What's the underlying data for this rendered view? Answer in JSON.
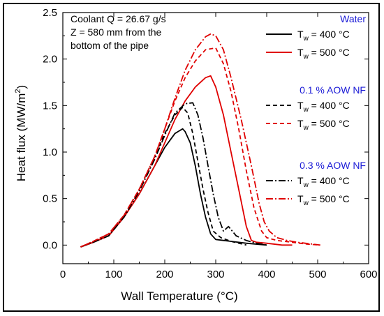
{
  "chart_data": {
    "type": "line",
    "xlabel": "Wall Temperature (°C)",
    "ylabel_main": "Heat flux (MW/m",
    "ylabel_sup": "2",
    "ylabel_end": ")",
    "xlim": [
      0,
      600
    ],
    "ylim": [
      -0.2,
      2.5
    ],
    "x_ticks": [
      0,
      100,
      200,
      300,
      400,
      500,
      600
    ],
    "y_ticks": [
      0.0,
      0.5,
      1.0,
      1.5,
      2.0,
      2.5
    ],
    "y_tick_labels": [
      "0.0",
      "0.5",
      "1.0",
      "1.5",
      "2.0",
      "2.5"
    ],
    "grid": false,
    "legend_position": "right",
    "annotation": [
      "Coolant Q = 26.67 g/s",
      "Z = 580 mm from the",
      "bottom of the pipe"
    ],
    "groups": [
      {
        "title": "Water"
      },
      {
        "title": "0.1 % AOW NF"
      },
      {
        "title": "0.3 % AOW NF"
      }
    ],
    "series": [
      {
        "group": 0,
        "label_main": "T",
        "label_sub": "w",
        "label_rest": " = 400 °C",
        "color": "#000000",
        "dash": "solid",
        "x": [
          35,
          60,
          90,
          120,
          150,
          180,
          200,
          220,
          235,
          240,
          250,
          260,
          270,
          280,
          290,
          300,
          330,
          360,
          400
        ],
        "y": [
          -0.02,
          0.03,
          0.1,
          0.3,
          0.55,
          0.85,
          1.05,
          1.2,
          1.25,
          1.22,
          1.1,
          0.85,
          0.55,
          0.3,
          0.12,
          0.06,
          0.04,
          0.02,
          0.0
        ]
      },
      {
        "group": 0,
        "label_main": "T",
        "label_sub": "w",
        "label_rest": " = 500 °C",
        "color": "#e00000",
        "dash": "solid",
        "x": [
          35,
          60,
          90,
          120,
          150,
          180,
          200,
          220,
          240,
          260,
          280,
          290,
          300,
          315,
          330,
          345,
          360,
          370,
          380,
          400,
          430,
          450
        ],
        "y": [
          -0.02,
          0.03,
          0.1,
          0.3,
          0.55,
          0.85,
          1.1,
          1.35,
          1.55,
          1.7,
          1.8,
          1.82,
          1.7,
          1.4,
          1.0,
          0.6,
          0.2,
          0.05,
          0.03,
          0.02,
          0.0,
          0.0
        ]
      },
      {
        "group": 1,
        "label_main": "T",
        "label_sub": "w",
        "label_rest": " = 400 °C",
        "color": "#000000",
        "dash": "6,4",
        "x": [
          35,
          60,
          90,
          120,
          150,
          180,
          200,
          220,
          235,
          245,
          255,
          265,
          275,
          285,
          295,
          310,
          330,
          360
        ],
        "y": [
          -0.02,
          0.04,
          0.12,
          0.32,
          0.6,
          0.95,
          1.2,
          1.4,
          1.48,
          1.42,
          1.2,
          0.9,
          0.6,
          0.35,
          0.15,
          0.08,
          0.04,
          0.0
        ]
      },
      {
        "group": 1,
        "label_main": "T",
        "label_sub": "w",
        "label_rest": " = 500 °C",
        "color": "#e00000",
        "dash": "6,4",
        "x": [
          35,
          60,
          90,
          120,
          150,
          180,
          200,
          220,
          240,
          260,
          280,
          300,
          315,
          330,
          345,
          360,
          375,
          390,
          400,
          420,
          450,
          480,
          505
        ],
        "y": [
          -0.02,
          0.04,
          0.12,
          0.32,
          0.6,
          0.95,
          1.25,
          1.55,
          1.8,
          1.98,
          2.1,
          2.12,
          1.95,
          1.65,
          1.25,
          0.8,
          0.4,
          0.15,
          0.08,
          0.05,
          0.03,
          0.01,
          0.0
        ]
      },
      {
        "group": 2,
        "label_main": "T",
        "label_sub": "w",
        "label_rest": " = 400 °C",
        "color": "#000000",
        "dash": "10,3,2,3",
        "x": [
          35,
          60,
          90,
          120,
          150,
          180,
          200,
          220,
          240,
          255,
          265,
          275,
          285,
          295,
          305,
          315,
          325,
          340,
          360,
          380,
          400
        ],
        "y": [
          -0.02,
          0.03,
          0.1,
          0.3,
          0.58,
          0.92,
          1.18,
          1.42,
          1.52,
          1.53,
          1.4,
          1.15,
          0.85,
          0.55,
          0.3,
          0.15,
          0.2,
          0.1,
          0.05,
          0.02,
          0.0
        ]
      },
      {
        "group": 2,
        "label_main": "T",
        "label_sub": "w",
        "label_rest": " = 500 °C",
        "color": "#e00000",
        "dash": "10,3,2,3",
        "x": [
          35,
          60,
          90,
          120,
          150,
          180,
          200,
          220,
          240,
          260,
          280,
          290,
          300,
          315,
          330,
          350,
          370,
          385,
          395,
          405,
          420,
          440,
          460,
          490,
          505
        ],
        "y": [
          -0.02,
          0.04,
          0.12,
          0.32,
          0.6,
          0.95,
          1.25,
          1.58,
          1.88,
          2.1,
          2.24,
          2.27,
          2.25,
          2.1,
          1.8,
          1.35,
          0.85,
          0.45,
          0.25,
          0.15,
          0.08,
          0.05,
          0.03,
          0.01,
          0.0
        ]
      }
    ]
  }
}
